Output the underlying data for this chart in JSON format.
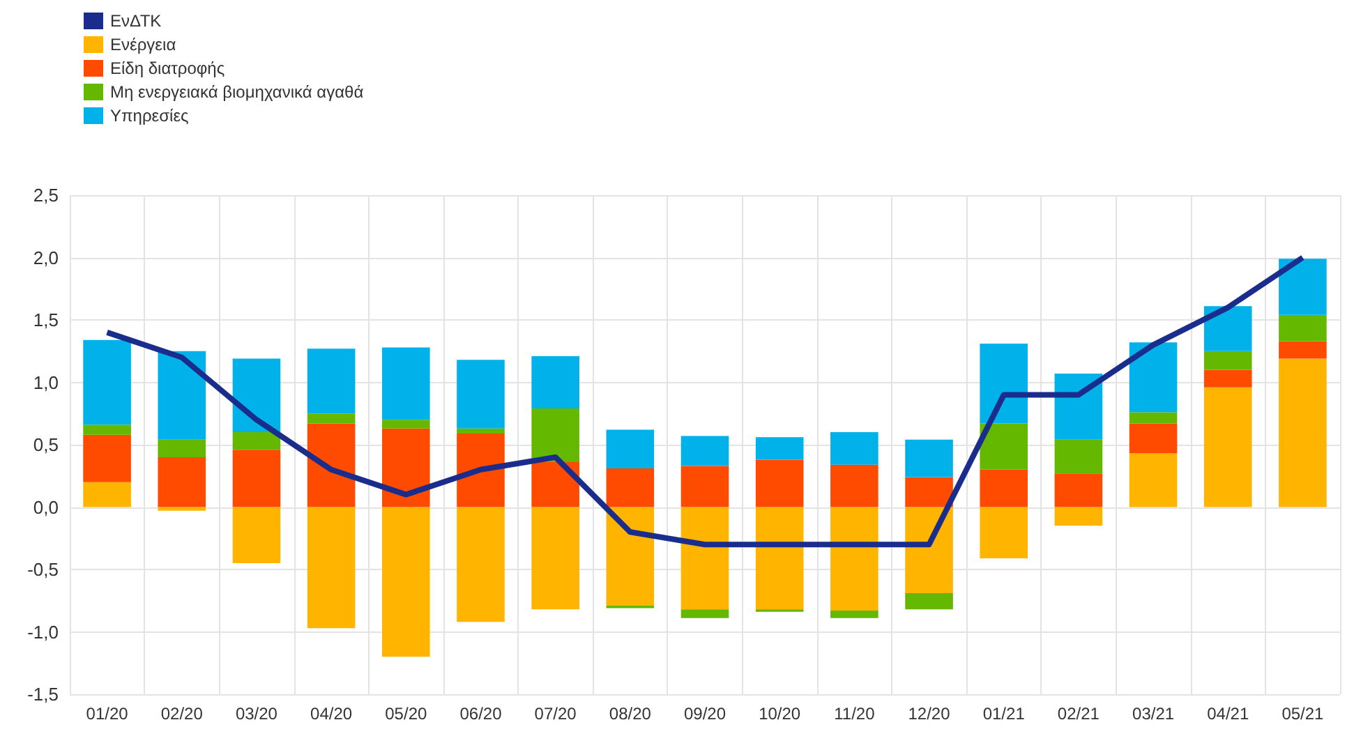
{
  "chart_data": {
    "type": "bar",
    "stacked": true,
    "categories": [
      "01/20",
      "02/20",
      "03/20",
      "04/20",
      "05/20",
      "06/20",
      "07/20",
      "08/20",
      "09/20",
      "10/20",
      "11/20",
      "12/20",
      "01/21",
      "02/21",
      "03/21",
      "04/21",
      "05/21"
    ],
    "series": [
      {
        "name": "ΕνΔΤΚ",
        "type": "line",
        "color": "#1a2d8c",
        "values": [
          1.4,
          1.2,
          0.7,
          0.3,
          0.1,
          0.3,
          0.4,
          -0.2,
          -0.3,
          -0.3,
          -0.3,
          -0.3,
          0.9,
          0.9,
          1.3,
          1.6,
          2.0
        ]
      },
      {
        "name": "Ενέργεια",
        "color": "#ffb400",
        "values": [
          0.2,
          -0.03,
          -0.45,
          -0.97,
          -1.2,
          -0.92,
          -0.82,
          -0.79,
          -0.82,
          -0.82,
          -0.83,
          -0.69,
          -0.41,
          -0.15,
          0.43,
          0.96,
          1.19
        ]
      },
      {
        "name": "Είδη διατροφής",
        "color": "#ff4b00",
        "values": [
          0.38,
          0.4,
          0.46,
          0.67,
          0.63,
          0.59,
          0.36,
          0.31,
          0.33,
          0.38,
          0.34,
          0.24,
          0.3,
          0.27,
          0.24,
          0.14,
          0.14
        ]
      },
      {
        "name": "Μη ενεργειακά βιομηχανικά αγαθά",
        "color": "#65b800",
        "values": [
          0.08,
          0.14,
          0.14,
          0.08,
          0.07,
          0.04,
          0.43,
          -0.02,
          -0.07,
          -0.02,
          -0.06,
          -0.13,
          0.37,
          0.27,
          0.09,
          0.15,
          0.21
        ]
      },
      {
        "name": "Υπηρεσίες",
        "color": "#00b1ea",
        "values": [
          0.68,
          0.71,
          0.59,
          0.52,
          0.58,
          0.55,
          0.42,
          0.31,
          0.24,
          0.18,
          0.26,
          0.3,
          0.64,
          0.53,
          0.56,
          0.36,
          0.45
        ]
      }
    ],
    "ylim": [
      -1.5,
      2.5
    ],
    "yticks": [
      {
        "value": -1.5,
        "label": "-1,5"
      },
      {
        "value": -1,
        "label": "-1,0"
      },
      {
        "value": -0.5,
        "label": "-0,5"
      },
      {
        "value": 0,
        "label": "0,0"
      },
      {
        "value": 0.5,
        "label": "0,5"
      },
      {
        "value": 1,
        "label": "1,0"
      },
      {
        "value": 1.5,
        "label": "1,5"
      },
      {
        "value": 2,
        "label": "2,0"
      },
      {
        "value": 2.5,
        "label": "2,5"
      }
    ],
    "grid": true,
    "legend": "top left"
  }
}
